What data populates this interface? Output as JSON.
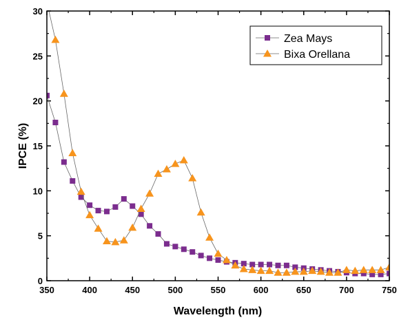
{
  "chart_data": {
    "type": "line",
    "xlabel": "Wavelength (nm)",
    "ylabel": "IPCE (%)",
    "xlim": [
      350,
      750
    ],
    "ylim": [
      0,
      30
    ],
    "xticks": [
      "350",
      "400",
      "450",
      "500",
      "550",
      "600",
      "650",
      "700",
      "750"
    ],
    "yticks": [
      "0",
      "5",
      "10",
      "15",
      "20",
      "25",
      "30"
    ],
    "grid": false,
    "legend_position": "top-right",
    "series": [
      {
        "name": "Zea Mays",
        "marker": "square",
        "color": "#7B2D8E",
        "x": [
          350,
          360,
          370,
          380,
          390,
          400,
          410,
          420,
          430,
          440,
          450,
          460,
          470,
          480,
          490,
          500,
          510,
          520,
          530,
          540,
          550,
          560,
          570,
          580,
          590,
          600,
          610,
          620,
          630,
          640,
          650,
          660,
          670,
          680,
          690,
          700,
          710,
          720,
          730,
          740,
          750
        ],
        "y": [
          20.6,
          17.6,
          13.2,
          11.1,
          9.3,
          8.4,
          7.8,
          7.7,
          8.2,
          9.1,
          8.3,
          7.4,
          6.1,
          5.2,
          4.1,
          3.8,
          3.5,
          3.2,
          2.8,
          2.5,
          2.3,
          2.1,
          2.0,
          1.9,
          1.8,
          1.8,
          1.8,
          1.7,
          1.7,
          1.5,
          1.4,
          1.3,
          1.2,
          1.1,
          1.0,
          0.9,
          0.8,
          0.8,
          0.7,
          0.7,
          0.8
        ]
      },
      {
        "name": "Bixa Orellana",
        "marker": "triangle",
        "color": "#F7941D",
        "x": [
          350,
          360,
          370,
          380,
          390,
          400,
          410,
          420,
          430,
          440,
          450,
          460,
          470,
          480,
          490,
          500,
          510,
          520,
          530,
          540,
          550,
          560,
          570,
          580,
          590,
          600,
          610,
          620,
          630,
          640,
          650,
          660,
          670,
          680,
          690,
          700,
          710,
          720,
          730,
          740,
          750
        ],
        "y": [
          31.0,
          26.8,
          20.8,
          14.2,
          9.9,
          7.3,
          5.8,
          4.4,
          4.3,
          4.5,
          5.9,
          8.0,
          9.7,
          11.9,
          12.4,
          13.0,
          13.4,
          11.4,
          7.6,
          4.8,
          3.0,
          2.3,
          1.7,
          1.3,
          1.2,
          1.1,
          1.1,
          0.9,
          0.9,
          1.0,
          1.0,
          1.1,
          1.0,
          0.9,
          0.9,
          1.2,
          1.1,
          1.2,
          1.2,
          1.2,
          1.5
        ]
      }
    ]
  }
}
